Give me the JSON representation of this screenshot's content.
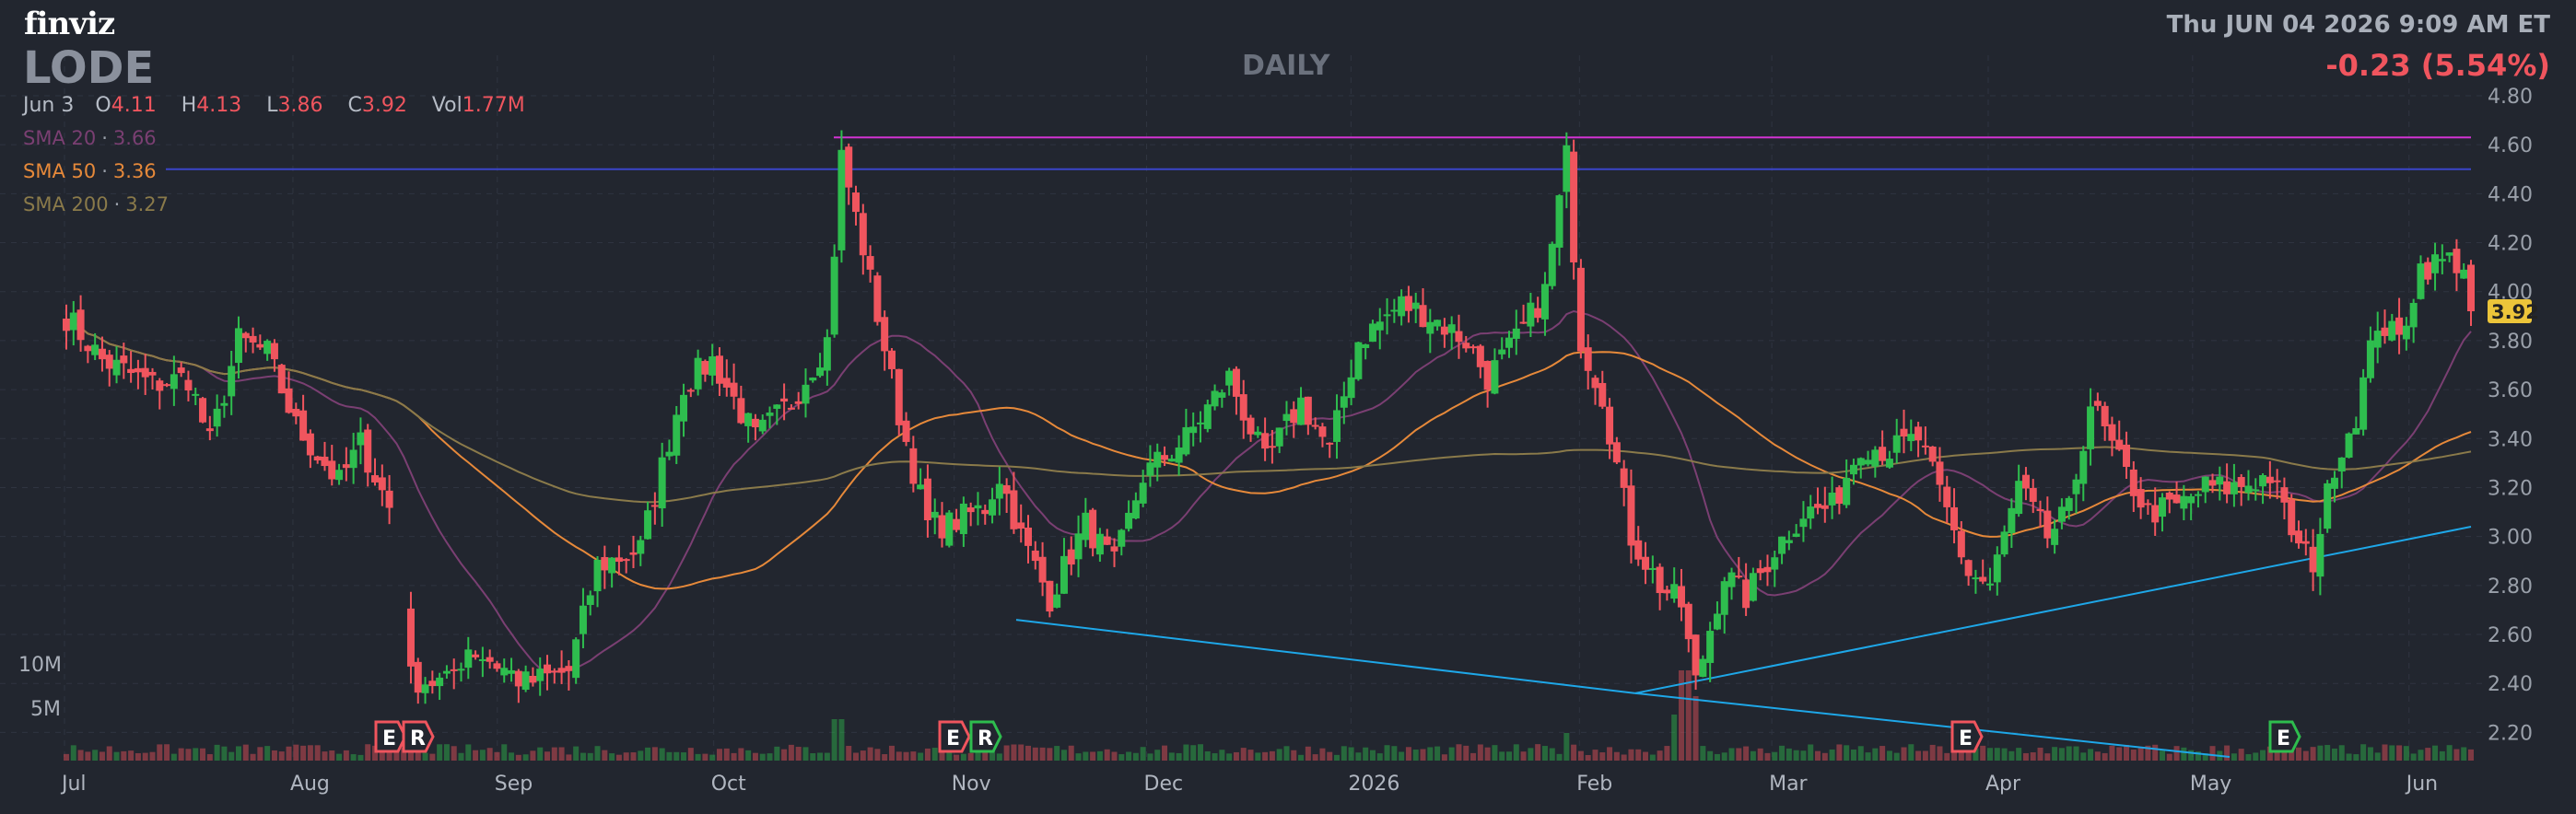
{
  "header": {
    "logo": "finviz",
    "ticker": "LODE",
    "period": "DAILY",
    "datetime": "Thu JUN 04 2026 9:09 AM ET",
    "change": "-0.23 (5.54%)"
  },
  "ohlc_bar": {
    "date": "Jun 3",
    "open_label": "O",
    "open": "4.11",
    "high_label": "H",
    "high": "4.13",
    "low_label": "L",
    "low": "3.86",
    "close_label": "C",
    "close": "3.92",
    "vol_label": "Vol",
    "vol": "1.77M"
  },
  "legend": {
    "sma20": {
      "label": "SMA 20",
      "value": "3.66",
      "color": "#7a3f72"
    },
    "sma50": {
      "label": "SMA 50",
      "value": "3.36",
      "color": "#e6893a"
    },
    "sma200": {
      "label": "SMA 200",
      "value": "3.27",
      "color": "#8a7a4a"
    }
  },
  "colors": {
    "background": "#22262f",
    "up": "#2ebd4e",
    "down": "#f0555e",
    "grid": "#2f3440",
    "trendline": "#1ea7e8",
    "resistance_magenta": "#d233d2",
    "resistance_blue": "#3b45c9",
    "last_price_bg": "#ecc53a"
  },
  "chart_data": {
    "type": "candlestick",
    "title": "LODE",
    "interval": "DAILY",
    "y_axis": {
      "ticks": [
        "2.20",
        "2.40",
        "2.60",
        "2.80",
        "3.00",
        "3.20",
        "3.40",
        "3.60",
        "3.80",
        "4.00",
        "4.20",
        "4.40",
        "4.60",
        "4.80"
      ],
      "range": [
        2.1,
        4.8
      ]
    },
    "last_price": "3.92",
    "volume_axis": {
      "labels": [
        "10M",
        "5M"
      ]
    },
    "x_axis": {
      "labels": [
        "Jul",
        "Aug",
        "Sep",
        "Oct",
        "Nov",
        "Dec",
        "2026",
        "Feb",
        "Mar",
        "Apr",
        "May",
        "Jun"
      ]
    },
    "price_anchors": [
      [
        0,
        3.9
      ],
      [
        5,
        3.72
      ],
      [
        12,
        3.62
      ],
      [
        17,
        3.65
      ],
      [
        20,
        3.38
      ],
      [
        24,
        3.8
      ],
      [
        28,
        3.75
      ],
      [
        32,
        3.45
      ],
      [
        38,
        3.22
      ],
      [
        41,
        3.38
      ],
      [
        46,
        3.05
      ],
      [
        48,
        2.42
      ],
      [
        53,
        2.4
      ],
      [
        56,
        2.55
      ],
      [
        60,
        2.48
      ],
      [
        64,
        2.4
      ],
      [
        70,
        2.45
      ],
      [
        74,
        2.88
      ],
      [
        80,
        2.95
      ],
      [
        86,
        3.62
      ],
      [
        90,
        3.72
      ],
      [
        96,
        3.4
      ],
      [
        101,
        3.55
      ],
      [
        106,
        3.8
      ],
      [
        108,
        4.55
      ],
      [
        111,
        4.18
      ],
      [
        116,
        3.5
      ],
      [
        120,
        3.05
      ],
      [
        123,
        3.05
      ],
      [
        128,
        3.12
      ],
      [
        130,
        3.25
      ],
      [
        133,
        3.0
      ],
      [
        137,
        2.75
      ],
      [
        142,
        3.05
      ],
      [
        146,
        2.88
      ],
      [
        150,
        3.25
      ],
      [
        156,
        3.4
      ],
      [
        162,
        3.65
      ],
      [
        167,
        3.3
      ],
      [
        172,
        3.55
      ],
      [
        176,
        3.35
      ],
      [
        180,
        3.8
      ],
      [
        186,
        3.95
      ],
      [
        190,
        3.9
      ],
      [
        195,
        3.8
      ],
      [
        198,
        3.65
      ],
      [
        202,
        3.8
      ],
      [
        206,
        4.0
      ],
      [
        209,
        4.55
      ],
      [
        211,
        3.8
      ],
      [
        214,
        3.58
      ],
      [
        218,
        3.0
      ],
      [
        222,
        2.8
      ],
      [
        225,
        2.72
      ],
      [
        227,
        2.4
      ],
      [
        231,
        2.85
      ],
      [
        234,
        2.75
      ],
      [
        238,
        2.95
      ],
      [
        242,
        3.1
      ],
      [
        246,
        3.12
      ],
      [
        250,
        3.38
      ],
      [
        254,
        3.35
      ],
      [
        258,
        3.4
      ],
      [
        262,
        3.1
      ],
      [
        265,
        2.85
      ],
      [
        268,
        2.8
      ],
      [
        272,
        3.2
      ],
      [
        276,
        3.0
      ],
      [
        279,
        3.1
      ],
      [
        282,
        3.55
      ],
      [
        286,
        3.3
      ],
      [
        290,
        3.1
      ],
      [
        294,
        3.12
      ],
      [
        298,
        3.2
      ],
      [
        302,
        3.2
      ],
      [
        307,
        3.25
      ],
      [
        311,
        2.95
      ],
      [
        313,
        2.9
      ],
      [
        316,
        3.3
      ],
      [
        319,
        3.5
      ],
      [
        322,
        3.88
      ],
      [
        325,
        3.8
      ],
      [
        328,
        4.1
      ],
      [
        332,
        4.13
      ],
      [
        334,
        4.11
      ],
      [
        335,
        3.92
      ]
    ],
    "sma_periods": [
      20,
      50,
      200
    ],
    "sma_values": {
      "sma20": 3.66,
      "sma50": 3.36,
      "sma200": 3.27
    },
    "horizontal_lines": [
      4.63,
      4.5
    ],
    "trendlines": [
      {
        "from": [
          "Nov",
          2.66
        ],
        "to": [
          "Feb",
          2.36
        ]
      },
      {
        "from": [
          "Feb",
          2.36
        ],
        "to": [
          "Jun",
          2.1
        ]
      },
      {
        "from": [
          "Feb",
          2.36
        ],
        "to": [
          "Jun",
          3.04
        ]
      }
    ],
    "event_markers": [
      {
        "label": "E",
        "kind": "earnings",
        "color": "#f0555e",
        "at": "Aug"
      },
      {
        "label": "R",
        "kind": "revenue",
        "color": "#f0555e",
        "at": "Aug"
      },
      {
        "label": "E",
        "kind": "earnings",
        "color": "#f0555e",
        "at": "Nov"
      },
      {
        "label": "R",
        "kind": "revenue",
        "color": "#2ebd4e",
        "at": "Nov"
      },
      {
        "label": "E",
        "kind": "earnings",
        "color": "#f0555e",
        "at": "Mar"
      },
      {
        "label": "E",
        "kind": "earnings",
        "color": "#2ebd4e",
        "at": "May"
      }
    ],
    "grid": true
  }
}
